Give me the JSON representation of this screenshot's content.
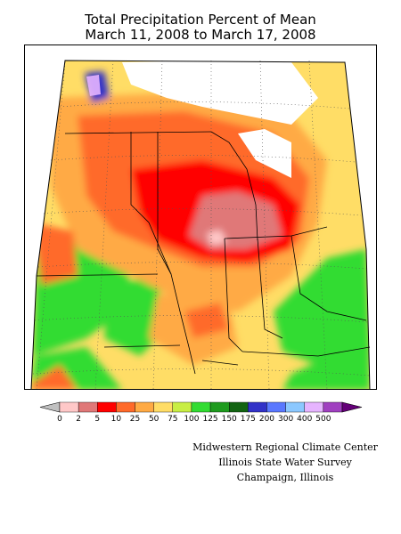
{
  "title": {
    "line1": "Total Precipitation Percent of Mean",
    "line2": "March 11, 2008 to March 17, 2008"
  },
  "legend": {
    "labels": [
      "0",
      "2",
      "5",
      "10",
      "25",
      "50",
      "75",
      "100",
      "125",
      "150",
      "175",
      "200",
      "300",
      "400",
      "500"
    ],
    "colors": [
      "#c0c0c0",
      "#ffc8c8",
      "#e07878",
      "#ff0000",
      "#ff6a2a",
      "#ffaa44",
      "#ffdd66",
      "#c8ee44",
      "#32dc32",
      "#1e9b1e",
      "#126412",
      "#3232c8",
      "#5a78ff",
      "#8cc8ff",
      "#e6b4ff",
      "#a040c0",
      "#640078"
    ]
  },
  "credits": {
    "line1": "Midwestern Regional Climate Center",
    "line2": "Illinois State Water Survey",
    "line3": "Champaign, Illinois"
  }
}
